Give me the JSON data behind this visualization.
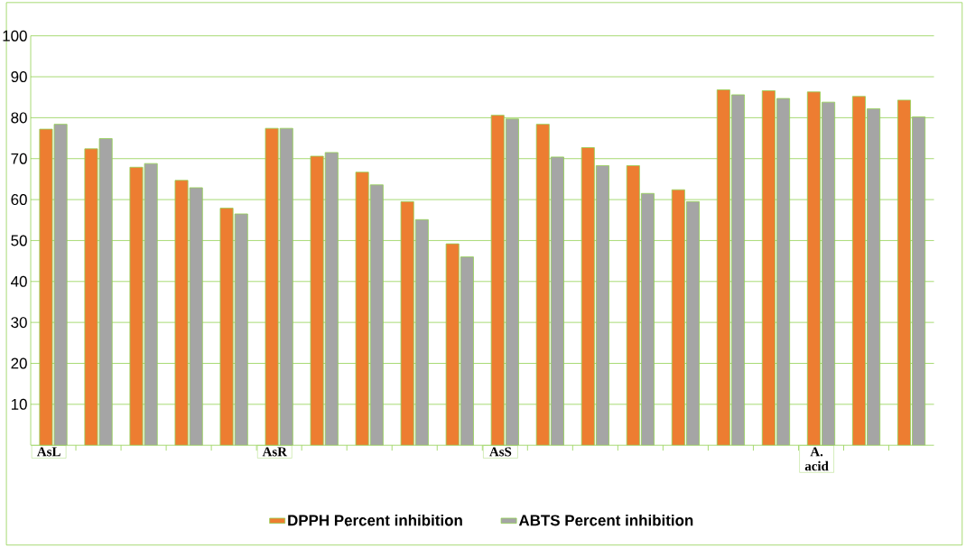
{
  "chart_data": {
    "type": "bar",
    "categories": [
      "AsL",
      null,
      null,
      null,
      null,
      "AsR",
      null,
      null,
      null,
      null,
      "AsS",
      null,
      null,
      null,
      null,
      null,
      null,
      "A. acid",
      null,
      null
    ],
    "series": [
      {
        "name": "DPPH Percent inhibition",
        "color": "#ed7d31",
        "values": [
          77.2,
          72.4,
          67.9,
          64.7,
          57.9,
          77.4,
          70.6,
          66.7,
          59.5,
          49.2,
          80.6,
          78.4,
          72.7,
          68.3,
          62.4,
          86.8,
          86.6,
          86.3,
          85.2,
          84.3
        ]
      },
      {
        "name": "ABTS Percent inhibition",
        "color": "#a5a5a5",
        "values": [
          78.4,
          74.9,
          68.8,
          62.9,
          56.5,
          77.4,
          71.5,
          63.6,
          55.1,
          46.0,
          79.7,
          70.4,
          68.3,
          61.5,
          59.5,
          85.6,
          84.7,
          83.8,
          82.2,
          80.2
        ]
      }
    ],
    "ylim": [
      0,
      100
    ],
    "yticks": [
      10,
      20,
      30,
      40,
      50,
      60,
      70,
      80,
      90,
      100
    ],
    "grid": "y",
    "legend": "bottom"
  }
}
